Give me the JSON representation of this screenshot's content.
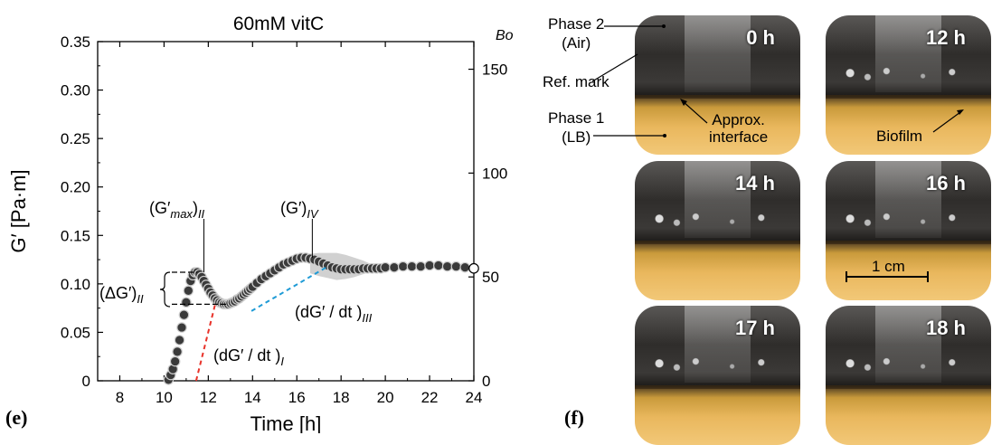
{
  "chart_data": {
    "type": "scatter",
    "title": "60mM vitC",
    "xlabel": "Time [h]",
    "ylabel": "G′ [Pa·m]",
    "y2label": "Bo",
    "xlim": [
      7,
      24
    ],
    "ylim": [
      0,
      0.35
    ],
    "y2lim": [
      0,
      163.3
    ],
    "xticks": [
      8,
      10,
      12,
      14,
      16,
      18,
      20,
      22,
      24
    ],
    "yticks": [
      0,
      0.05,
      0.1,
      0.15,
      0.2,
      0.25,
      0.3,
      0.35
    ],
    "ytick_labels": [
      "0",
      "0.05",
      "0.10",
      "0.15",
      "0.20",
      "0.25",
      "0.30",
      "0.35"
    ],
    "y2ticks": [
      0,
      50,
      100,
      150
    ],
    "series": [
      {
        "x": [
          10.2,
          10.3,
          10.4,
          10.5,
          10.6,
          10.7,
          10.8,
          10.9,
          11.0,
          11.1,
          11.2,
          11.3,
          11.4,
          11.5,
          11.6,
          11.7,
          11.8,
          11.9,
          12.0,
          12.1,
          12.2,
          12.3,
          12.4,
          12.5,
          12.6,
          12.7,
          12.8,
          12.9,
          13.0,
          13.1,
          13.2,
          13.3,
          13.4,
          13.5,
          13.6,
          13.7,
          13.8,
          13.9,
          14.0,
          14.2,
          14.4,
          14.6,
          14.8,
          15.0,
          15.2,
          15.4,
          15.6,
          15.8,
          16.0,
          16.2,
          16.4,
          16.6,
          16.8,
          17.0,
          17.2,
          17.4,
          17.6,
          17.8,
          18.0,
          18.2,
          18.4,
          18.6,
          18.8,
          19.0,
          19.2,
          19.4,
          19.6,
          19.8,
          20.0,
          20.4,
          20.8,
          21.2,
          21.6,
          22.0,
          22.4,
          22.8,
          23.2,
          23.6,
          24.0
        ],
        "y": [
          0.001,
          0.006,
          0.012,
          0.02,
          0.03,
          0.042,
          0.055,
          0.068,
          0.081,
          0.093,
          0.103,
          0.109,
          0.112,
          0.112,
          0.11,
          0.107,
          0.103,
          0.099,
          0.095,
          0.091,
          0.088,
          0.085,
          0.083,
          0.081,
          0.08,
          0.079,
          0.079,
          0.079,
          0.08,
          0.081,
          0.082,
          0.084,
          0.085,
          0.087,
          0.089,
          0.091,
          0.093,
          0.095,
          0.097,
          0.101,
          0.105,
          0.108,
          0.111,
          0.114,
          0.117,
          0.12,
          0.122,
          0.124,
          0.126,
          0.127,
          0.127,
          0.126,
          0.125,
          0.123,
          0.121,
          0.119,
          0.117,
          0.116,
          0.115,
          0.115,
          0.115,
          0.115,
          0.115,
          0.116,
          0.116,
          0.116,
          0.116,
          0.116,
          0.117,
          0.117,
          0.118,
          0.118,
          0.118,
          0.119,
          0.119,
          0.118,
          0.118,
          0.117,
          0.116
        ]
      }
    ],
    "error_band": {
      "x": [
        16.6,
        17.0,
        17.4,
        17.8,
        18.2,
        18.6,
        19.0,
        19.3
      ],
      "lower": [
        0.111,
        0.108,
        0.106,
        0.104,
        0.105,
        0.107,
        0.11,
        0.112
      ],
      "upper": [
        0.131,
        0.132,
        0.132,
        0.132,
        0.13,
        0.127,
        0.124,
        0.121
      ]
    },
    "annotations": {
      "gmax_label": "(G′max)II",
      "gmax_base": "(G′",
      "gmax_sub": "max",
      "gmax_close": ")",
      "gmax_outer": "II",
      "giv_base": "(G′)",
      "giv_sub": "IV",
      "deltag_base": "(ΔG′)",
      "deltag_sub": "II",
      "slope1_base": "(dG′ / dt )",
      "slope1_sub": "I",
      "slope3_base": "(dG′ / dt )",
      "slope3_sub": "III"
    },
    "colors": {
      "markers_fill": "#3a3a3a",
      "markers_edge": "#cfcfcf",
      "red_dash": "#e8332a",
      "blue_dash": "#1f9bd6",
      "band": "#bdbdbd"
    }
  },
  "panels": {
    "e_label": "(e)",
    "f_label": "(f)"
  },
  "photos": {
    "times": [
      "0 h",
      "12 h",
      "14 h",
      "16 h",
      "17 h",
      "18 h"
    ],
    "phase2": "Phase 2",
    "phase2_sub": "(Air)",
    "ref_mark": "Ref. mark",
    "phase1": "Phase 1",
    "phase1_sub": "(LB)",
    "interface_1": "Approx.",
    "interface_2": "interface",
    "biofilm": "Biofilm",
    "scale": "1 cm"
  }
}
